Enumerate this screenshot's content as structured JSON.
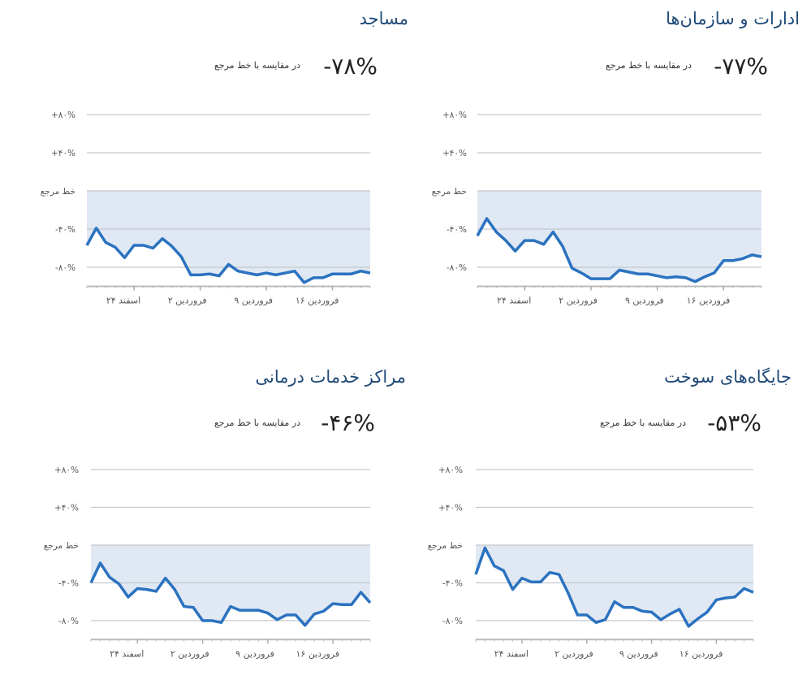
{
  "chart_data": [
    {
      "type": "line",
      "title": "مساجد",
      "headline": "-۷۸%",
      "caption": "در مقایسه با خط مرجع",
      "y_tick_labels": [
        "+۸۰%",
        "+۴۰%",
        "خط مرجع",
        "-۴۰%",
        "-۸۰%"
      ],
      "y_ticks": [
        80,
        40,
        0,
        -40,
        -80
      ],
      "ylim": [
        -100,
        80
      ],
      "x_tick_labels": [
        "۲۴ اسفند",
        "۲ فروردین",
        "۹ فروردین",
        "۱۶ فروردین"
      ],
      "x_tick_indices": [
        5,
        12,
        19,
        26
      ],
      "values": [
        -57,
        -39,
        -54,
        -59,
        -70,
        -57,
        -57,
        -60,
        -50,
        -58,
        -69,
        -88,
        -88,
        -87,
        -89,
        -77,
        -84,
        -86,
        -88,
        -86,
        -88,
        -86,
        -84,
        -96,
        -91,
        -91,
        -87,
        -87,
        -87,
        -84,
        -86
      ]
    },
    {
      "type": "line",
      "title": "ادارات و سازمان‌ها",
      "headline": "-۷۷%",
      "caption": "در مقایسه با خط مرجع",
      "y_tick_labels": [
        "+۸۰%",
        "+۴۰%",
        "خط مرجع",
        "-۴۰%",
        "-۸۰%"
      ],
      "y_ticks": [
        80,
        40,
        0,
        -40,
        -80
      ],
      "ylim": [
        -100,
        80
      ],
      "x_tick_labels": [
        "۲۴ اسفند",
        "۲ فروردین",
        "۹ فروردین",
        "۱۶ فروردین"
      ],
      "x_tick_indices": [
        5,
        12,
        19,
        26
      ],
      "values": [
        -47,
        -29,
        -43,
        -52,
        -63,
        -52,
        -52,
        -56,
        -43,
        -58,
        -81,
        -86,
        -92,
        -92,
        -92,
        -83,
        -85,
        -87,
        -87,
        -89,
        -91,
        -90,
        -91,
        -95,
        -90,
        -86,
        -73,
        -73,
        -71,
        -67,
        -69
      ]
    },
    {
      "type": "line",
      "title": "مراکز خدمات درمانی",
      "headline": "-۴۶%",
      "caption": "در مقایسه با خط مرجع",
      "y_tick_labels": [
        "+۸۰%",
        "+۴۰%",
        "خط مرجع",
        "-۴۰%",
        "-۸۰%"
      ],
      "y_ticks": [
        80,
        40,
        0,
        -40,
        -80
      ],
      "ylim": [
        -100,
        80
      ],
      "x_tick_labels": [
        "۲۴ اسفند",
        "۲ فروردین",
        "۹ فروردین",
        "۱۶ فروردین"
      ],
      "x_tick_indices": [
        5,
        12,
        19,
        26
      ],
      "values": [
        -40,
        -19,
        -34,
        -41,
        -55,
        -46,
        -47,
        -49,
        -35,
        -47,
        -65,
        -66,
        -80,
        -80,
        -82,
        -65,
        -69,
        -69,
        -69,
        -72,
        -79,
        -74,
        -74,
        -85,
        -73,
        -70,
        -62,
        -63,
        -63,
        -50,
        -61
      ]
    },
    {
      "type": "line",
      "title": "جایگاه‌های سوخت",
      "headline": "-۵۳%",
      "caption": "در مقایسه با خط مرجع",
      "y_tick_labels": [
        "+۸۰%",
        "+۴۰%",
        "خط مرجع",
        "-۴۰%",
        "-۸۰%"
      ],
      "y_ticks": [
        80,
        40,
        0,
        -40,
        -80
      ],
      "ylim": [
        -100,
        80
      ],
      "x_tick_labels": [
        "۲۴ اسفند",
        "۲ فروردین",
        "۹ فروردین",
        "۱۶ فروردین"
      ],
      "x_tick_indices": [
        5,
        12,
        19,
        26
      ],
      "values": [
        -31,
        -3,
        -22,
        -27,
        -47,
        -35,
        -39,
        -39,
        -29,
        -31,
        -51,
        -74,
        -74,
        -82,
        -79,
        -60,
        -66,
        -66,
        -70,
        -71,
        -79,
        -73,
        -68,
        -86,
        -78,
        -71,
        -58,
        -56,
        -55,
        -46,
        -50
      ]
    }
  ],
  "colors": {
    "line": "#2b72c0",
    "fill": "#dfe8f3",
    "grid": "#c4c8cc",
    "title": "#1f4a78"
  }
}
